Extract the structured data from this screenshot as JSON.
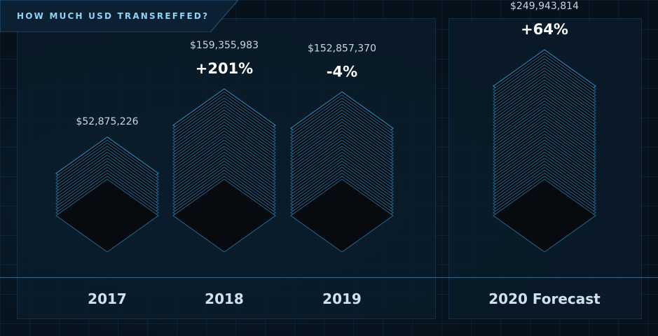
{
  "header": {
    "title": "HOW MUCH USD TRANSREFFED?"
  },
  "colors": {
    "accent": "#3fa9e0",
    "stack_edge": "#2f8fc8",
    "text": "#cfe3ef"
  },
  "chart_data": {
    "type": "bar",
    "title": "HOW MUCH USD TRANSREFFED?",
    "categories": [
      "2017",
      "2018",
      "2019",
      "2020 Forecast"
    ],
    "values": [
      52875226,
      159355983,
      152857370,
      249943814
    ],
    "value_labels": [
      "$52,875,226",
      "$159,355,983",
      "$152,857,370",
      "$249,943,814"
    ],
    "change_labels": [
      "",
      "+201%",
      "-4%",
      "+64%"
    ],
    "xlabel": "",
    "ylabel": "",
    "grid": true
  }
}
